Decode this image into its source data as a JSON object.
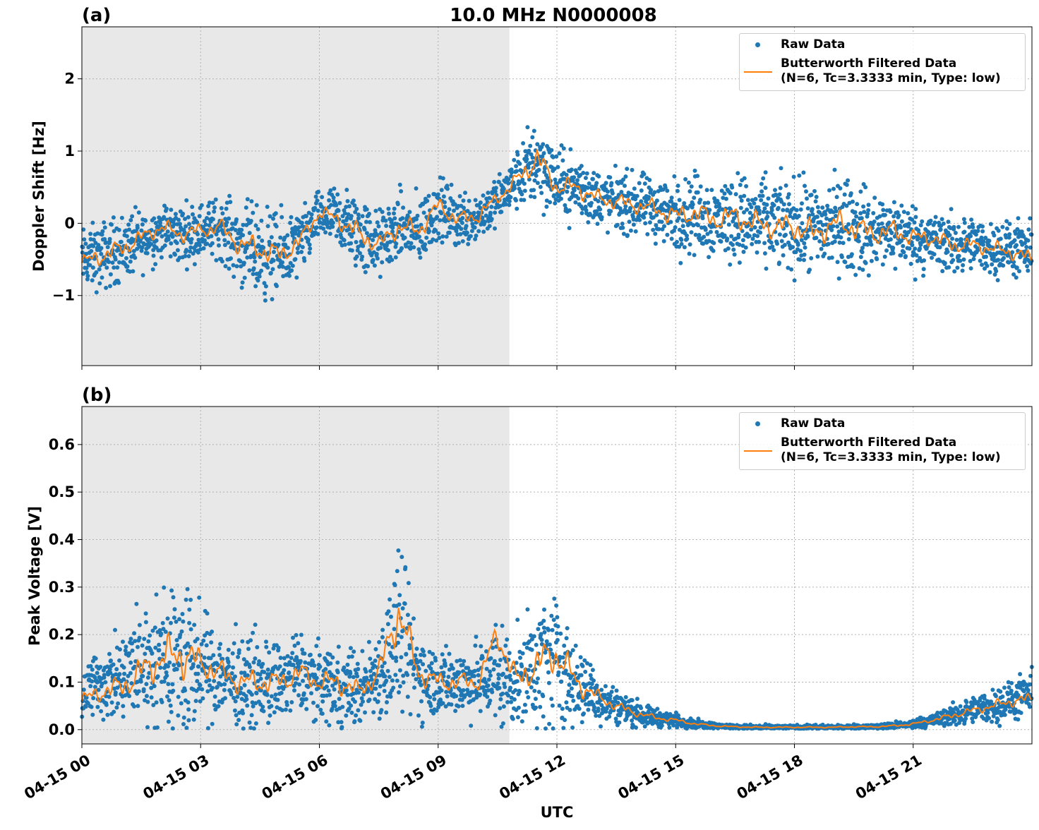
{
  "figure_title": "10.0 MHz N0000008",
  "x_axis_label": "UTC",
  "x_ticks": [
    "04-15 00",
    "04-15 03",
    "04-15 06",
    "04-15 09",
    "04-15 12",
    "04-15 15",
    "04-15 18",
    "04-15 21"
  ],
  "legend": {
    "raw_label": "Raw Data",
    "filtered_label_line1": "Butterworth Filtered Data",
    "filtered_label_line2": "(N=6, Tc=3.3333 min, Type: low)"
  },
  "colors": {
    "raw": "#1f77b4",
    "filtered": "#ff7f0e",
    "night_shade": "#e8e8e8",
    "grid": "#b0b0b0"
  },
  "panels": [
    {
      "label": "(a)",
      "ylabel": "Doppler Shift [Hz]",
      "yticks": [
        "2",
        "1",
        "0",
        "−1"
      ]
    },
    {
      "label": "(b)",
      "ylabel": "Peak Voltage [V]",
      "yticks": [
        "0.6",
        "0.5",
        "0.4",
        "0.3",
        "0.2",
        "0.1",
        "0.0"
      ]
    }
  ],
  "chart_data": [
    {
      "type": "scatter",
      "title": "10.0 MHz N0000008",
      "panel_label": "(a)",
      "xlabel": "UTC",
      "ylabel": "Doppler Shift [Hz]",
      "x_unit": "hours UTC on 04-15",
      "xlim": [
        0,
        24
      ],
      "ylim": [
        -1.97,
        2.72
      ],
      "y_tick_values": [
        2,
        1,
        0,
        -1
      ],
      "grid": true,
      "legend_position": "top-right",
      "shaded_region_x": [
        0,
        10.8
      ],
      "series": [
        {
          "name": "Raw Data",
          "style": "points",
          "x": [
            0,
            0.5,
            1,
            1.5,
            2,
            2.5,
            3,
            3.5,
            4,
            4.5,
            5,
            5.5,
            6,
            6.5,
            7,
            7.5,
            8,
            8.5,
            9,
            9.5,
            10,
            10.5,
            11,
            11.5,
            12,
            12.5,
            13,
            13.5,
            14,
            14.5,
            15,
            15.5,
            16,
            16.5,
            17,
            17.5,
            18,
            18.5,
            19,
            19.5,
            20,
            20.5,
            21,
            21.5,
            22,
            22.5,
            23,
            23.5,
            24
          ],
          "y": [
            -0.5,
            -0.45,
            -0.35,
            -0.25,
            -0.1,
            -0.15,
            -0.1,
            -0.05,
            -0.3,
            -0.4,
            -0.45,
            -0.3,
            0.1,
            0.05,
            -0.15,
            -0.3,
            -0.05,
            -0.15,
            0.2,
            0.05,
            0.1,
            0.3,
            0.6,
            0.9,
            0.55,
            0.5,
            0.35,
            0.3,
            0.25,
            0.2,
            0.1,
            0.15,
            0.05,
            0.1,
            0.0,
            0.0,
            -0.05,
            -0.1,
            0.0,
            -0.05,
            -0.15,
            -0.1,
            -0.2,
            -0.25,
            -0.3,
            -0.3,
            -0.35,
            -0.35,
            -0.45
          ],
          "band": [
            0.45,
            0.5,
            0.5,
            0.45,
            0.4,
            0.45,
            0.4,
            0.45,
            0.6,
            0.7,
            0.6,
            0.5,
            0.35,
            0.5,
            0.6,
            0.5,
            0.5,
            0.55,
            0.45,
            0.45,
            0.4,
            0.35,
            0.45,
            0.7,
            0.5,
            0.5,
            0.45,
            0.45,
            0.45,
            0.5,
            0.55,
            0.6,
            0.6,
            0.65,
            0.65,
            0.65,
            0.7,
            0.7,
            0.7,
            0.7,
            0.6,
            0.55,
            0.5,
            0.45,
            0.45,
            0.4,
            0.4,
            0.4,
            0.45
          ]
        },
        {
          "name": "Butterworth Filtered Data\n(N=6, Tc=3.3333 min, Type: low)",
          "style": "line",
          "x": [
            0,
            0.5,
            1,
            1.5,
            2,
            2.5,
            3,
            3.5,
            4,
            4.5,
            5,
            5.5,
            6,
            6.5,
            7,
            7.5,
            8,
            8.5,
            9,
            9.5,
            10,
            10.5,
            11,
            11.5,
            12,
            12.5,
            13,
            13.5,
            14,
            14.5,
            15,
            15.5,
            16,
            16.5,
            17,
            17.5,
            18,
            18.5,
            19,
            19.5,
            20,
            20.5,
            21,
            21.5,
            22,
            22.5,
            23,
            23.5,
            24
          ],
          "y": [
            -0.55,
            -0.45,
            -0.35,
            -0.2,
            -0.05,
            -0.15,
            -0.1,
            -0.05,
            -0.3,
            -0.35,
            -0.45,
            -0.25,
            0.15,
            0.05,
            -0.15,
            -0.3,
            -0.05,
            -0.1,
            0.25,
            0.05,
            0.1,
            0.35,
            0.6,
            0.9,
            0.5,
            0.5,
            0.35,
            0.3,
            0.25,
            0.2,
            0.1,
            0.15,
            0.05,
            0.1,
            0.0,
            -0.05,
            -0.05,
            -0.15,
            0.0,
            -0.05,
            -0.15,
            -0.1,
            -0.2,
            -0.2,
            -0.3,
            -0.3,
            -0.35,
            -0.4,
            -0.5
          ]
        }
      ]
    },
    {
      "type": "scatter",
      "panel_label": "(b)",
      "xlabel": "UTC",
      "ylabel": "Peak Voltage [V]",
      "x_unit": "hours UTC on 04-15",
      "xlim": [
        0,
        24
      ],
      "ylim": [
        -0.03,
        0.68
      ],
      "y_tick_values": [
        0.6,
        0.5,
        0.4,
        0.3,
        0.2,
        0.1,
        0.0
      ],
      "grid": true,
      "legend_position": "top-right",
      "shaded_region_x": [
        0,
        10.8
      ],
      "series": [
        {
          "name": "Raw Data",
          "style": "points",
          "x": [
            0,
            0.5,
            1,
            1.5,
            2,
            2.5,
            3,
            3.5,
            4,
            4.5,
            5,
            5.5,
            6,
            6.5,
            7,
            7.5,
            8,
            8.5,
            9,
            9.5,
            10,
            10.5,
            11,
            11.5,
            12,
            12.5,
            13,
            13.5,
            14,
            14.5,
            15,
            15.5,
            16,
            16.5,
            17,
            17.5,
            18,
            18.5,
            19,
            19.5,
            20,
            20.5,
            21,
            21.5,
            22,
            22.5,
            23,
            23.5,
            24
          ],
          "y": [
            0.08,
            0.1,
            0.1,
            0.14,
            0.14,
            0.15,
            0.13,
            0.12,
            0.1,
            0.1,
            0.1,
            0.12,
            0.1,
            0.1,
            0.08,
            0.12,
            0.2,
            0.12,
            0.1,
            0.1,
            0.1,
            0.12,
            0.1,
            0.14,
            0.15,
            0.1,
            0.07,
            0.05,
            0.035,
            0.025,
            0.02,
            0.012,
            0.008,
            0.006,
            0.005,
            0.005,
            0.005,
            0.005,
            0.005,
            0.006,
            0.006,
            0.008,
            0.012,
            0.02,
            0.03,
            0.04,
            0.05,
            0.06,
            0.075
          ],
          "band": [
            0.07,
            0.08,
            0.1,
            0.14,
            0.15,
            0.2,
            0.12,
            0.1,
            0.1,
            0.1,
            0.09,
            0.1,
            0.08,
            0.1,
            0.08,
            0.1,
            0.2,
            0.1,
            0.08,
            0.08,
            0.08,
            0.12,
            0.1,
            0.15,
            0.16,
            0.1,
            0.06,
            0.04,
            0.03,
            0.02,
            0.015,
            0.01,
            0.007,
            0.005,
            0.005,
            0.005,
            0.005,
            0.005,
            0.005,
            0.005,
            0.006,
            0.008,
            0.01,
            0.015,
            0.025,
            0.03,
            0.04,
            0.045,
            0.05
          ]
        },
        {
          "name": "Butterworth Filtered Data\n(N=6, Tc=3.3333 min, Type: low)",
          "style": "line",
          "x": [
            0,
            0.5,
            1,
            1.5,
            2,
            2.5,
            3,
            3.5,
            4,
            4.5,
            5,
            5.5,
            6,
            6.5,
            7,
            7.5,
            8,
            8.5,
            9,
            9.5,
            10,
            10.5,
            11,
            11.5,
            12,
            12.5,
            13,
            13.5,
            14,
            14.5,
            15,
            15.5,
            16,
            16.5,
            17,
            17.5,
            18,
            18.5,
            19,
            19.5,
            20,
            20.5,
            21,
            21.5,
            22,
            22.5,
            23,
            23.5,
            24
          ],
          "y": [
            0.06,
            0.08,
            0.09,
            0.12,
            0.15,
            0.16,
            0.14,
            0.12,
            0.1,
            0.1,
            0.1,
            0.12,
            0.1,
            0.1,
            0.08,
            0.12,
            0.25,
            0.12,
            0.1,
            0.1,
            0.1,
            0.2,
            0.1,
            0.14,
            0.16,
            0.1,
            0.07,
            0.05,
            0.035,
            0.025,
            0.02,
            0.012,
            0.008,
            0.006,
            0.005,
            0.005,
            0.005,
            0.005,
            0.005,
            0.006,
            0.006,
            0.008,
            0.012,
            0.02,
            0.03,
            0.04,
            0.05,
            0.06,
            0.065
          ]
        }
      ]
    }
  ]
}
